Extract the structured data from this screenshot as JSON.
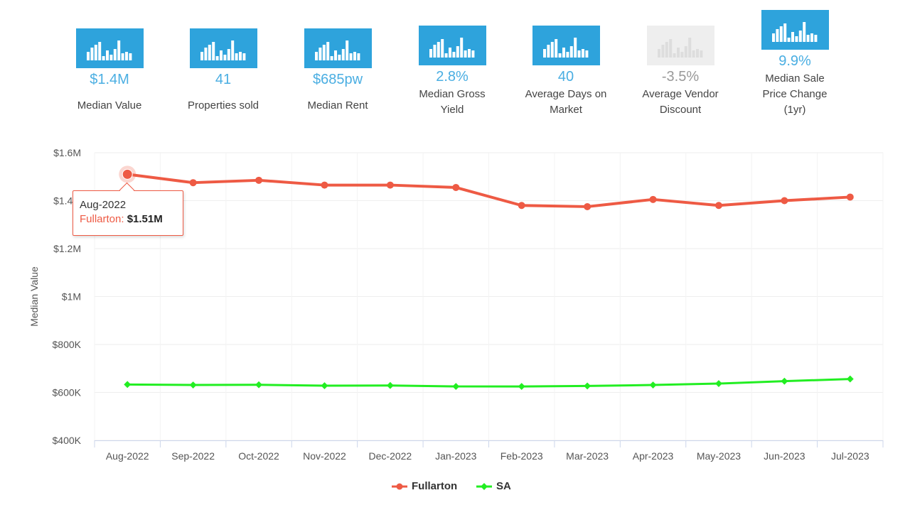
{
  "stats": [
    {
      "value": "$1.4M",
      "label": "Median Value",
      "icon": "bar-chart-icon",
      "disabled": false
    },
    {
      "value": "41",
      "label": "Properties sold",
      "icon": "bar-chart-icon",
      "disabled": false
    },
    {
      "value": "$685pw",
      "label": "Median Rent",
      "icon": "bar-chart-icon",
      "disabled": false
    },
    {
      "value": "2.8%",
      "label_lines": [
        "Median Gross",
        "Yield"
      ],
      "icon": "bar-chart-icon",
      "disabled": false
    },
    {
      "value": "40",
      "label_lines": [
        "Average Days on",
        "Market"
      ],
      "icon": "bar-chart-icon",
      "disabled": false
    },
    {
      "value": "-3.5%",
      "label_lines": [
        "Average Vendor",
        "Discount"
      ],
      "icon": "bar-chart-icon",
      "disabled": true
    },
    {
      "value": "9.9%",
      "label_lines": [
        "Median Sale",
        "Price Change",
        "(1yr)"
      ],
      "icon": "bar-chart-icon",
      "disabled": false
    }
  ],
  "colors": {
    "accent": "#2ea3dc",
    "fullarton": "#ee5a44",
    "sa": "#22ee22"
  },
  "tooltip": {
    "date": "Aug-2022",
    "series": "Fullarton",
    "value": "$1.51M"
  },
  "chart_data": {
    "type": "line",
    "title": "",
    "xlabel": "",
    "ylabel": "Median Value",
    "categories": [
      "Aug-2022",
      "Sep-2022",
      "Oct-2022",
      "Nov-2022",
      "Dec-2022",
      "Jan-2023",
      "Feb-2023",
      "Mar-2023",
      "Apr-2023",
      "May-2023",
      "Jun-2023",
      "Jul-2023"
    ],
    "ylim": [
      400000,
      1600000
    ],
    "yticks": [
      400000,
      600000,
      800000,
      1000000,
      1200000,
      1400000,
      1600000
    ],
    "ytick_labels": [
      "$400K",
      "$600K",
      "$800K",
      "$1M",
      "$1.2M",
      "$1.4M",
      "$1.6M"
    ],
    "series": [
      {
        "name": "Fullarton",
        "color": "#ee5a44",
        "values": [
          1510000,
          1475000,
          1485000,
          1465000,
          1465000,
          1455000,
          1380000,
          1375000,
          1405000,
          1380000,
          1400000,
          1415000
        ]
      },
      {
        "name": "SA",
        "color": "#22ee22",
        "values": [
          633000,
          631000,
          632000,
          628000,
          629000,
          625000,
          625000,
          627000,
          631000,
          637000,
          647000,
          656000
        ]
      }
    ],
    "legend_position": "bottom-center",
    "grid": true
  }
}
